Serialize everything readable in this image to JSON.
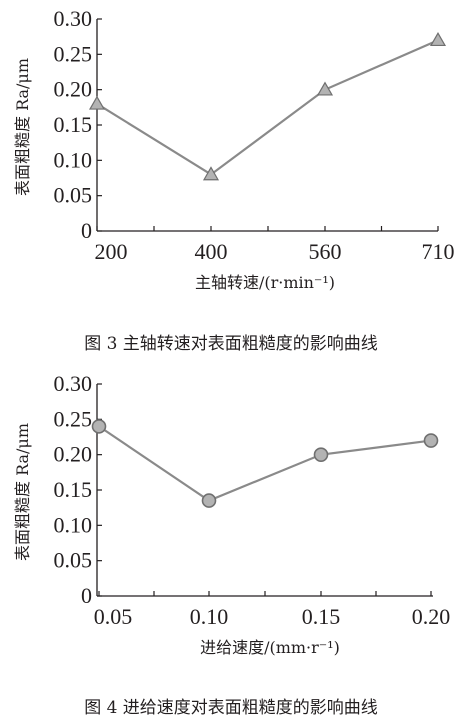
{
  "figures": [
    {
      "caption": "图 3 主轴转速对表面粗糙度的影响曲线"
    },
    {
      "caption": "图 4 进给速度对表面粗糙度的影响曲线"
    }
  ],
  "chart_data": [
    {
      "type": "line",
      "marker": "triangle",
      "categories": [
        "200",
        "400",
        "560",
        "710"
      ],
      "values": [
        0.18,
        0.08,
        0.2,
        0.27
      ],
      "xlabel": "主轴转速/(r·min⁻¹)",
      "ylabel": "表面粗糙度 Ra/μm",
      "ylim": [
        0,
        0.3
      ],
      "yticks": [
        "0",
        "0.05",
        "0.10",
        "0.15",
        "0.20",
        "0.25",
        "0.30"
      ],
      "grid": false,
      "line_color": "#8a8a8a",
      "marker_fill": "#b3b3b3"
    },
    {
      "type": "line",
      "marker": "circle",
      "categories": [
        "0.05",
        "0.10",
        "0.15",
        "0.20"
      ],
      "values": [
        0.24,
        0.135,
        0.2,
        0.22
      ],
      "xlabel": "进给速度/(mm·r⁻¹)",
      "ylabel": "表面粗糙度 Ra/μm",
      "ylim": [
        0,
        0.3
      ],
      "yticks": [
        "0",
        "0.05",
        "0.10",
        "0.15",
        "0.20",
        "0.25",
        "0.30"
      ],
      "grid": false,
      "line_color": "#8a8a8a",
      "marker_fill": "#b3b3b3"
    }
  ]
}
